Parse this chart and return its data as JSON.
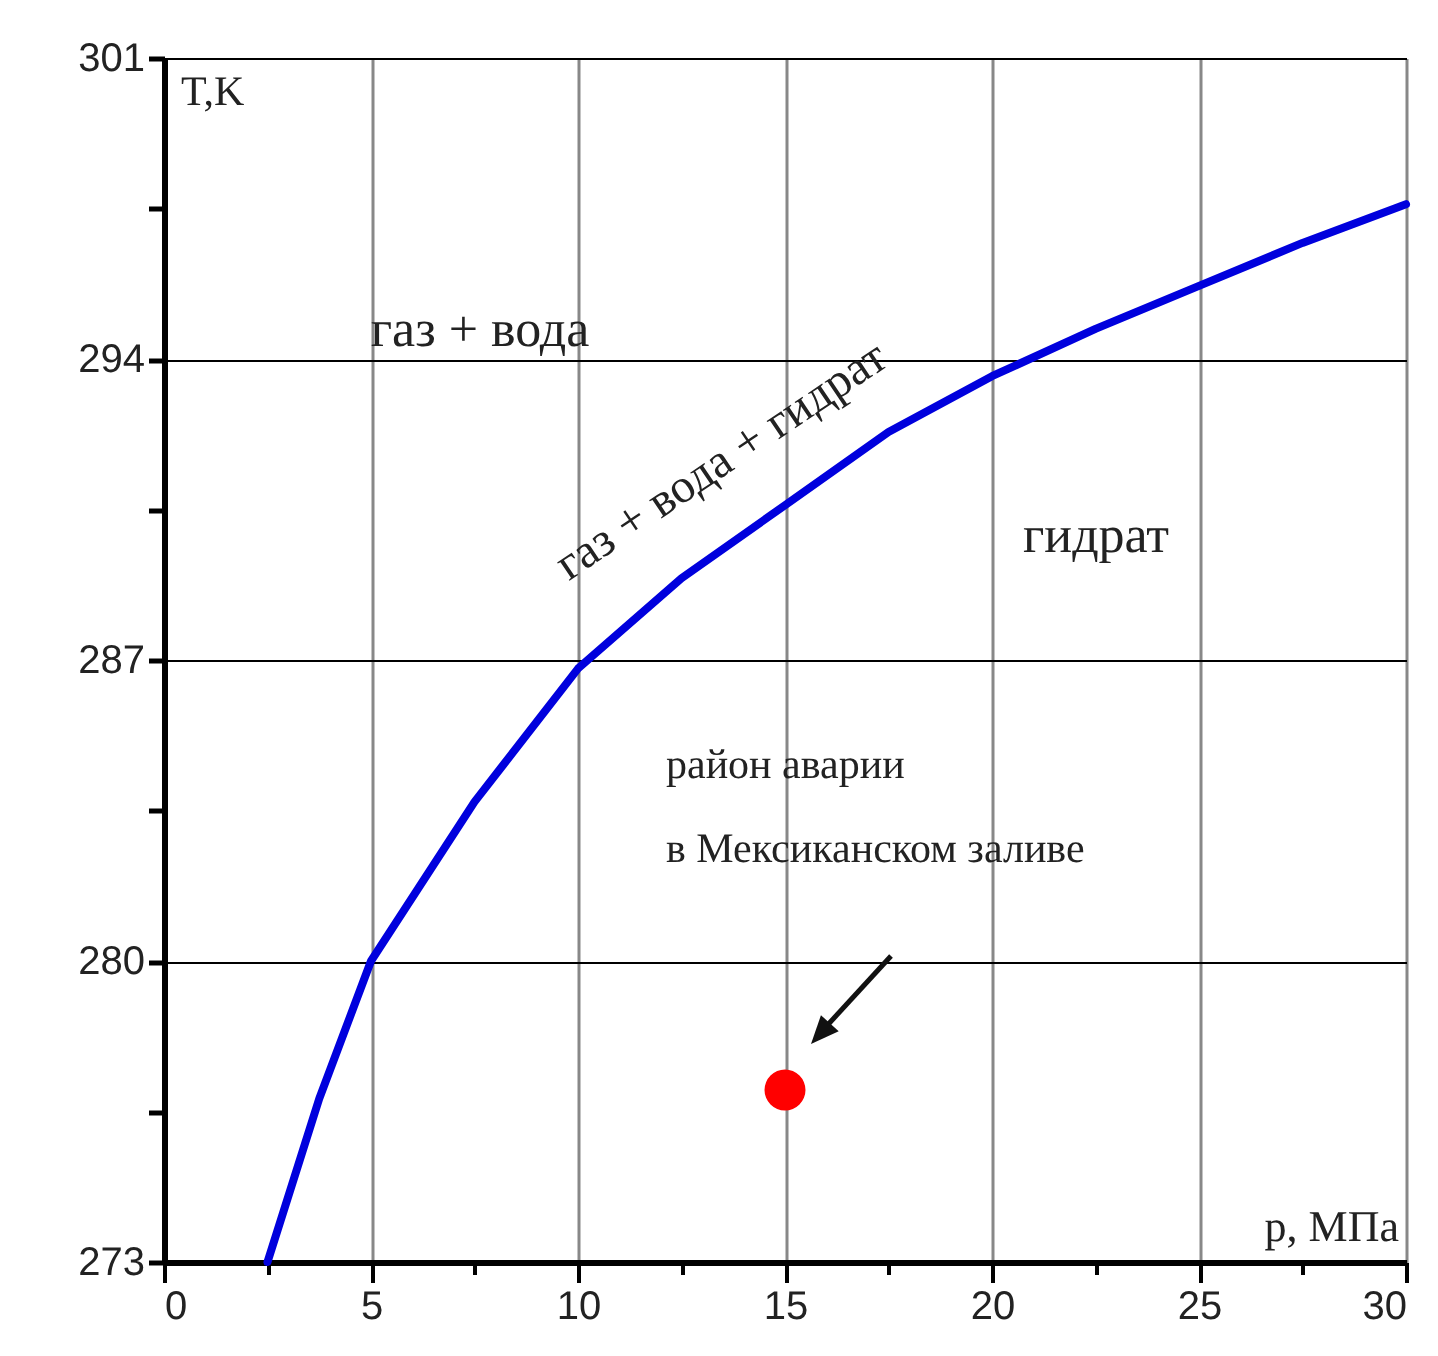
{
  "chart_data": {
    "type": "line",
    "xlabel": "p, МПа",
    "ylabel": "T,K",
    "xlim": [
      0,
      30
    ],
    "xticks": [
      0,
      {
        "value": 2.5,
        "label": null
      },
      5,
      {
        "value": 7.5,
        "label": null
      },
      10,
      {
        "value": 12.5,
        "label": null
      },
      15,
      {
        "value": 17.5,
        "label": null
      },
      20,
      {
        "value": 22.5,
        "label": null
      },
      25,
      {
        "value": 27.5,
        "label": null
      },
      30
    ],
    "ylim": [
      273,
      301
    ],
    "yticks": [
      273,
      {
        "value": 276.5,
        "label": null
      },
      280,
      {
        "value": 283.5,
        "label": null
      },
      287,
      {
        "value": 290.5,
        "label": null
      },
      294,
      {
        "value": 297.5,
        "label": null
      },
      301
    ],
    "grid": true,
    "marker": "none",
    "line_style": "solid",
    "series": [
      {
        "name": "газ + вода + гидрат",
        "color": "#0000dd",
        "x": [
          2.5,
          3.75,
          5,
          7.5,
          10,
          12.5,
          15,
          17.5,
          20,
          22.5,
          25,
          27.5,
          30
        ],
        "values": [
          273,
          276.8,
          280,
          283.7,
          286.8,
          288.9,
          290.6,
          292.3,
          293.6,
          294.7,
          295.7,
          296.7,
          297.6
        ]
      },
      {
        "type": "scatter",
        "color": "#ff0000",
        "marker": "circle",
        "x": [
          15
        ],
        "values": [
          277
        ]
      }
    ],
    "annotations": [
      "газ + вода",
      "гидрат",
      "район аварии\nв Мексиканском заливе"
    ]
  }
}
